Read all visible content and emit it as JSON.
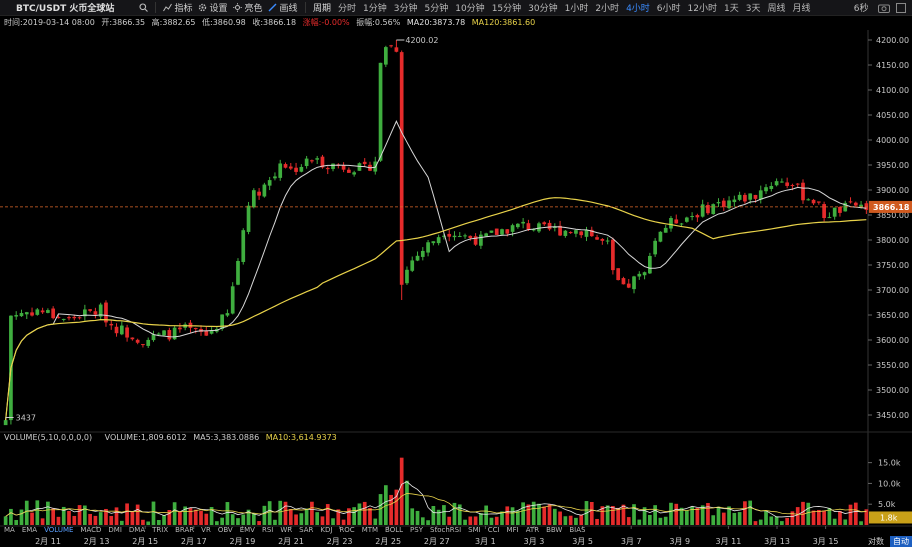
{
  "toolbar": {
    "symbol": "BTC/USDT 火币全球站",
    "indicators_label": "指标",
    "settings_label": "设置",
    "brightness_label": "亮色",
    "draw_label": "画线",
    "period_label": "周期",
    "timeframes": [
      "分时",
      "1分钟",
      "3分钟",
      "5分钟",
      "10分钟",
      "15分钟",
      "30分钟",
      "1小时",
      "2小时",
      "4小时",
      "6小时",
      "12小时",
      "1天",
      "3天",
      "周线",
      "月线"
    ],
    "active_timeframe": "4小时",
    "countdown": "6秒"
  },
  "info": {
    "time": "时间:2019-03-14 08:00",
    "open": "开:3866.35",
    "high": "高:3882.65",
    "low": "低:3860.98",
    "close": "收:3866.18",
    "change": "涨幅:-0.00%",
    "amplitude": "振幅:0.56%",
    "ma20": "MA20:3873.78",
    "ma120": "MA120:3861.60"
  },
  "volume_info": {
    "label": "VOLUME(5,10,0,0,0,0)",
    "volume": "VOLUME:1,809.6012",
    "ma5": "MA5:3,383.0886",
    "ma10": "MA10:3,614.9373"
  },
  "indicator_tabs": [
    "MA",
    "EMA",
    "VOLUME",
    "MACD",
    "DMI",
    "DMA",
    "TRIX",
    "BRAR",
    "VR",
    "OBV",
    "EMV",
    "RSI",
    "WR",
    "SAR",
    "KDJ",
    "ROC",
    "MTM",
    "BOLL",
    "PSY",
    "StochRSI",
    "SMI",
    "CCI",
    "MFI",
    "ATR",
    "BBW",
    "BIAS"
  ],
  "active_indicator": "VOLUME",
  "colors": {
    "up": "#3fae3f",
    "down": "#e52b2b",
    "ma20": "#d8d8d8",
    "ma120": "#e8d24a",
    "price_line": "#e06a2b",
    "active": "#3b8cff"
  },
  "chart_data": {
    "type": "candlestick",
    "price_axis": {
      "min": 3420,
      "max": 4220,
      "ticks": [
        3450,
        3500,
        3550,
        3600,
        3650,
        3700,
        3750,
        3800,
        3850,
        3900,
        3950,
        4000,
        4050,
        4100,
        4150,
        4200
      ]
    },
    "volume_axis": {
      "max": 19000,
      "ticks": [
        "5.0k",
        "10.0k",
        "15.0k"
      ]
    },
    "x_ticks": [
      "2月 11",
      "2月 13",
      "2月 15",
      "2月 17",
      "2月 19",
      "2月 21",
      "2月 23",
      "2月 25",
      "2月 27",
      "3月 1",
      "3月 3",
      "3月 5",
      "3月 7",
      "3月 9",
      "3月 11",
      "3月 13",
      "3月 15"
    ],
    "last_price": "3866.18",
    "last_volume": "1.8k",
    "high_marker": "4200.02",
    "low_marker": "3437",
    "right_label": "对数",
    "right_label2": "自动",
    "anchors": [
      [
        0,
        3440
      ],
      [
        1,
        3650
      ],
      [
        6,
        3660
      ],
      [
        12,
        3640
      ],
      [
        14,
        3650
      ],
      [
        18,
        3660
      ],
      [
        20,
        3630
      ],
      [
        26,
        3600
      ],
      [
        34,
        3620
      ],
      [
        38,
        3610
      ],
      [
        42,
        3650
      ],
      [
        44,
        3760
      ],
      [
        46,
        3880
      ],
      [
        48,
        3900
      ],
      [
        51,
        3930
      ],
      [
        52,
        3960
      ],
      [
        54,
        3940
      ],
      [
        58,
        3960
      ],
      [
        62,
        3950
      ],
      [
        66,
        3945
      ],
      [
        68,
        3940
      ],
      [
        70,
        3960
      ],
      [
        71,
        4150
      ],
      [
        72,
        4190
      ],
      [
        74,
        4185
      ],
      [
        75,
        3720
      ],
      [
        77,
        3760
      ],
      [
        80,
        3790
      ],
      [
        83,
        3820
      ],
      [
        86,
        3810
      ],
      [
        90,
        3800
      ],
      [
        94,
        3820
      ],
      [
        98,
        3830
      ],
      [
        102,
        3820
      ],
      [
        106,
        3820
      ],
      [
        110,
        3820
      ],
      [
        112,
        3800
      ],
      [
        114,
        3790
      ],
      [
        115,
        3730
      ],
      [
        117,
        3700
      ],
      [
        119,
        3720
      ],
      [
        121,
        3730
      ],
      [
        122,
        3780
      ],
      [
        124,
        3820
      ],
      [
        127,
        3840
      ],
      [
        130,
        3850
      ],
      [
        134,
        3870
      ],
      [
        138,
        3880
      ],
      [
        142,
        3890
      ],
      [
        144,
        3910
      ],
      [
        147,
        3920
      ],
      [
        149,
        3910
      ],
      [
        151,
        3890
      ],
      [
        153,
        3880
      ],
      [
        155,
        3850
      ],
      [
        158,
        3860
      ],
      [
        161,
        3870
      ],
      [
        163,
        3866
      ]
    ]
  }
}
